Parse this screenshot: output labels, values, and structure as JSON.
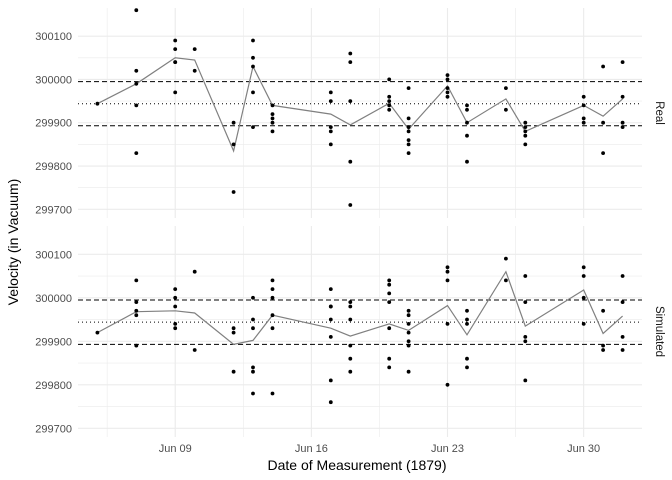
{
  "chart_data": {
    "type": "scatter",
    "xlabel": "Date of Measurement (1879)",
    "ylabel": "Velocity (in Vacuum)",
    "x_ticks": [
      "Jun 09",
      "Jun 16",
      "Jun 23",
      "Jun 30"
    ],
    "y_ticks": [
      "299700",
      "299800",
      "299900",
      "300000",
      "300100"
    ],
    "ylim": [
      299680,
      300165
    ],
    "xlim": [
      "1879-06-04",
      "1879-07-03"
    ],
    "grid": true,
    "colors": {
      "points": "#000000",
      "line": "#808080",
      "grid": "#ebebeb",
      "reference": "#000000"
    },
    "panels": [
      {
        "label": "Real",
        "reference_lines": {
          "mean": 299944,
          "lower": 299893,
          "upper": 299995
        },
        "mean_line": {
          "x": [
            "1879-06-05",
            "1879-06-07",
            "1879-06-09",
            "1879-06-10",
            "1879-06-12",
            "1879-06-13",
            "1879-06-14",
            "1879-06-17",
            "1879-06-18",
            "1879-06-20",
            "1879-06-21",
            "1879-06-23",
            "1879-06-24",
            "1879-06-26",
            "1879-06-27",
            "1879-06-30",
            "1879-07-01",
            "1879-07-02"
          ],
          "y": [
            299944,
            299990,
            300050,
            300045,
            299835,
            300030,
            299940,
            299920,
            299895,
            299945,
            299885,
            299985,
            299900,
            299955,
            299880,
            299940,
            299915,
            299955
          ]
        },
        "points": {
          "x": [
            "1879-06-05",
            "1879-06-07",
            "1879-06-07",
            "1879-06-07",
            "1879-06-07",
            "1879-06-07",
            "1879-06-09",
            "1879-06-09",
            "1879-06-09",
            "1879-06-09",
            "1879-06-09",
            "1879-06-10",
            "1879-06-10",
            "1879-06-12",
            "1879-06-12",
            "1879-06-12",
            "1879-06-13",
            "1879-06-13",
            "1879-06-13",
            "1879-06-13",
            "1879-06-13",
            "1879-06-14",
            "1879-06-14",
            "1879-06-14",
            "1879-06-14",
            "1879-06-14",
            "1879-06-17",
            "1879-06-17",
            "1879-06-17",
            "1879-06-17",
            "1879-06-17",
            "1879-06-18",
            "1879-06-18",
            "1879-06-18",
            "1879-06-18",
            "1879-06-18",
            "1879-06-20",
            "1879-06-20",
            "1879-06-20",
            "1879-06-20",
            "1879-06-20",
            "1879-06-21",
            "1879-06-21",
            "1879-06-21",
            "1879-06-21",
            "1879-06-21",
            "1879-06-21",
            "1879-06-21",
            "1879-06-23",
            "1879-06-23",
            "1879-06-23",
            "1879-06-23",
            "1879-06-23",
            "1879-06-24",
            "1879-06-24",
            "1879-06-24",
            "1879-06-24",
            "1879-06-24",
            "1879-06-26",
            "1879-06-26",
            "1879-06-27",
            "1879-06-27",
            "1879-06-27",
            "1879-06-27",
            "1879-06-27",
            "1879-06-30",
            "1879-06-30",
            "1879-06-30",
            "1879-06-30",
            "1879-07-01",
            "1879-07-01",
            "1879-07-01",
            "1879-07-02",
            "1879-07-02",
            "1879-07-02",
            "1879-07-02"
          ],
          "y": [
            299944,
            300160,
            300020,
            299990,
            299940,
            299830,
            300090,
            300070,
            300040,
            300040,
            299970,
            300070,
            300020,
            299900,
            299850,
            299740,
            300090,
            300050,
            300030,
            299970,
            299890,
            299940,
            299920,
            299910,
            299900,
            299880,
            299970,
            299950,
            299890,
            299880,
            299850,
            300060,
            300040,
            299950,
            299810,
            299710,
            300000,
            299960,
            299950,
            299940,
            299930,
            299980,
            299910,
            299890,
            299880,
            299860,
            299850,
            299830,
            300010,
            300000,
            299980,
            299970,
            299960,
            299940,
            299930,
            299900,
            299870,
            299810,
            299980,
            299930,
            299900,
            299890,
            299880,
            299870,
            299850,
            299960,
            299940,
            299910,
            299900,
            300030,
            299900,
            299830,
            300040,
            299960,
            299900,
            299890
          ]
        }
      },
      {
        "label": "Simulated",
        "reference_lines": {
          "mean": 299944,
          "lower": 299893,
          "upper": 299995
        },
        "mean_line": {
          "x": [
            "1879-06-05",
            "1879-06-07",
            "1879-06-09",
            "1879-06-10",
            "1879-06-12",
            "1879-06-13",
            "1879-06-14",
            "1879-06-17",
            "1879-06-18",
            "1879-06-20",
            "1879-06-21",
            "1879-06-23",
            "1879-06-24",
            "1879-06-26",
            "1879-06-27",
            "1879-06-30",
            "1879-07-01",
            "1879-07-02"
          ],
          "y": [
            299920,
            299968,
            299970,
            299965,
            299893,
            299902,
            299960,
            299930,
            299912,
            299940,
            299925,
            299982,
            299915,
            300060,
            299935,
            300018,
            299918,
            299958
          ]
        },
        "points": {
          "x": [
            "1879-06-05",
            "1879-06-07",
            "1879-06-07",
            "1879-06-07",
            "1879-06-07",
            "1879-06-07",
            "1879-06-09",
            "1879-06-09",
            "1879-06-09",
            "1879-06-09",
            "1879-06-09",
            "1879-06-10",
            "1879-06-10",
            "1879-06-12",
            "1879-06-12",
            "1879-06-12",
            "1879-06-13",
            "1879-06-13",
            "1879-06-13",
            "1879-06-13",
            "1879-06-13",
            "1879-06-13",
            "1879-06-14",
            "1879-06-14",
            "1879-06-14",
            "1879-06-14",
            "1879-06-14",
            "1879-06-14",
            "1879-06-17",
            "1879-06-17",
            "1879-06-17",
            "1879-06-17",
            "1879-06-17",
            "1879-06-17",
            "1879-06-17",
            "1879-06-18",
            "1879-06-18",
            "1879-06-18",
            "1879-06-18",
            "1879-06-18",
            "1879-06-18",
            "1879-06-20",
            "1879-06-20",
            "1879-06-20",
            "1879-06-20",
            "1879-06-20",
            "1879-06-20",
            "1879-06-20",
            "1879-06-21",
            "1879-06-21",
            "1879-06-21",
            "1879-06-21",
            "1879-06-21",
            "1879-06-21",
            "1879-06-21",
            "1879-06-23",
            "1879-06-23",
            "1879-06-23",
            "1879-06-23",
            "1879-06-23",
            "1879-06-24",
            "1879-06-24",
            "1879-06-24",
            "1879-06-24",
            "1879-06-24",
            "1879-06-26",
            "1879-06-26",
            "1879-06-27",
            "1879-06-27",
            "1879-06-27",
            "1879-06-27",
            "1879-06-27",
            "1879-06-30",
            "1879-06-30",
            "1879-06-30",
            "1879-06-30",
            "1879-07-01",
            "1879-07-01",
            "1879-07-01",
            "1879-07-02",
            "1879-07-02",
            "1879-07-02",
            "1879-07-02"
          ],
          "y": [
            299920,
            300040,
            299990,
            299970,
            299960,
            299890,
            300020,
            300000,
            299980,
            299940,
            299930,
            300060,
            299880,
            299930,
            299920,
            299830,
            300000,
            299950,
            299930,
            299840,
            299830,
            299780,
            300040,
            300020,
            300000,
            299960,
            299930,
            299780,
            300020,
            299980,
            299980,
            299950,
            299910,
            299810,
            299760,
            299990,
            299980,
            299950,
            299890,
            299860,
            299830,
            300040,
            300030,
            300010,
            299990,
            299930,
            299860,
            299840,
            299970,
            299960,
            299940,
            299920,
            299900,
            299890,
            299830,
            300070,
            300060,
            300040,
            299940,
            299800,
            299970,
            299950,
            299940,
            299860,
            299840,
            300090,
            300040,
            300050,
            299990,
            299910,
            299900,
            299810,
            300070,
            300050,
            300000,
            299940,
            299970,
            299890,
            299880,
            300050,
            299990,
            299910,
            299880
          ]
        }
      }
    ]
  }
}
